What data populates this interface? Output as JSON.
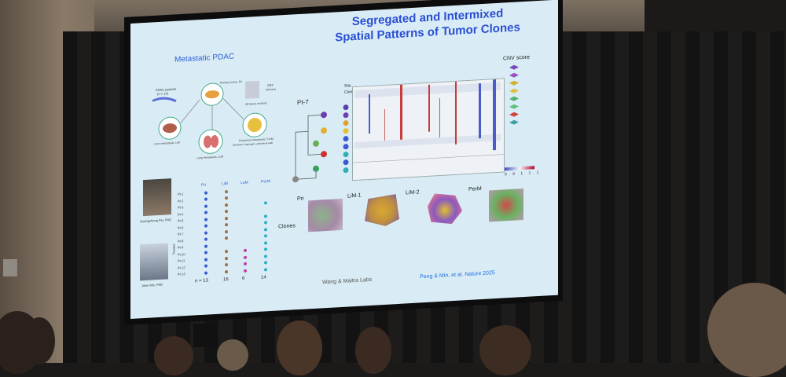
{
  "slide": {
    "title_line1": "Segregated and Intermixed",
    "title_line2": "Spatial Patterns of Tumor Clones",
    "left_heading": "Metastatic PDAC",
    "schematic": {
      "patients": "PDAC patients",
      "n": "(n = 13)",
      "primary": "Primary tumor, Pri",
      "sections": "49 tissue sections",
      "srt": "SRT",
      "visium": "(Visium)",
      "liver": "Liver metastasis, LiM",
      "lung": "Lung metastasis, LuM",
      "peritoneal": "Peritoneal metastasis, PerM",
      "peritoneal_sub": "(intestinal, diaphragm, abdominal wall)"
    },
    "people": [
      {
        "name": "Guangsheng Pei, PhD"
      },
      {
        "name": "Jimin Min, PhD"
      }
    ],
    "table": {
      "col_heads": [
        "Pri",
        "LiM",
        "LuM",
        "PerM"
      ],
      "rows": [
        "Pt-1",
        "Pt-2",
        "Pt-3",
        "Pt-4",
        "Pt-5",
        "Pt-6",
        "Pt-7",
        "Pt-8",
        "Pt-9",
        "Pt-10",
        "Pt-11",
        "Pt-12",
        "Pt-13"
      ],
      "treated_label": "Treated",
      "counts": [
        "n = 13",
        "16",
        "6",
        "14"
      ]
    },
    "heatmap": {
      "patient": "Pt-7",
      "site_label": "Site",
      "clone_label": "Clone",
      "legend_title": "CNV score",
      "colorbar_ticks": [
        "0.9",
        "1",
        "1.1"
      ]
    },
    "tissues": [
      {
        "label": "Pri"
      },
      {
        "label": "LiM-1"
      },
      {
        "label": "LiM-2"
      },
      {
        "label": "PerM"
      }
    ],
    "clones_label": "Clones",
    "lab_credit": "Wang & Maitra Labs",
    "citation": "Peng & Min, et al. Nature 2025"
  },
  "colors": {
    "title_blue": "#2a4fd3",
    "slide_bg": "#d9ecf6",
    "citation_blue": "#1f6fe0"
  }
}
